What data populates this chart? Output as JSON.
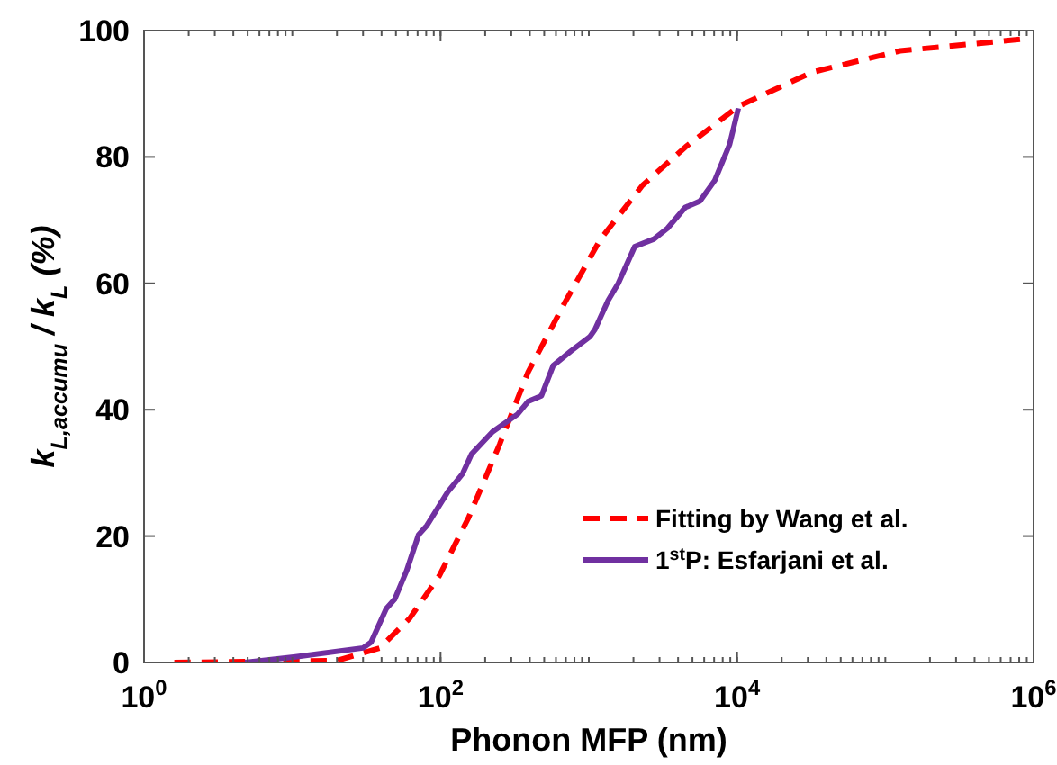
{
  "chart_data": {
    "type": "line",
    "xlabel": "Phonon MFP (nm)",
    "ylabel": "k$_{L,accumu}$ / k$_{L}$ (%)",
    "log": "x",
    "xlim": [
      1,
      1000000
    ],
    "xticks": [
      {
        "value": 1,
        "label": "10$^{0}$"
      },
      {
        "value": 100,
        "label": "10$^{2}$"
      },
      {
        "value": 10000,
        "label": "10$^{4}$"
      },
      {
        "value": 1000000,
        "label": "10$^{6}$"
      }
    ],
    "ylim": [
      0,
      100
    ],
    "yticks": [
      0,
      20,
      40,
      60,
      80,
      100
    ],
    "grid": false,
    "legend": "bottom right",
    "series": [
      {
        "name": "Fitting by Wang et al.",
        "color": "#ff0000",
        "line_style": "dashed",
        "x": [
          1.6,
          20,
          39,
          62,
          98,
          155,
          250,
          390,
          690,
          1200,
          2300,
          4500,
          10200,
          32000,
          126000,
          810000
        ],
        "values": [
          0,
          0.3,
          2.3,
          7,
          13.7,
          23,
          34.5,
          46,
          57,
          67,
          75.5,
          81.6,
          88,
          93.4,
          96.8,
          98.6
        ]
      },
      {
        "name": "1$^{st}$P: Esfarjani et al.",
        "color": "#7030a0",
        "line_style": "solid",
        "x": [
          4.8,
          10.5,
          30,
          34,
          43,
          49,
          59,
          71,
          81,
          112,
          141,
          162,
          224,
          331,
          389,
          479,
          575,
          759,
          1020,
          1100,
          1350,
          1580,
          2040,
          2750,
          3390,
          4470,
          5620,
          7080,
          8910,
          10200
        ],
        "values": [
          0,
          0.9,
          2.3,
          3.2,
          8.5,
          10,
          14.5,
          20.2,
          21.7,
          27,
          29.9,
          33,
          36.5,
          39.3,
          41.3,
          42.2,
          47,
          49.3,
          51.6,
          52.7,
          57.3,
          60,
          65.8,
          67,
          68.7,
          72,
          73,
          76.3,
          82,
          87.7
        ]
      }
    ]
  }
}
